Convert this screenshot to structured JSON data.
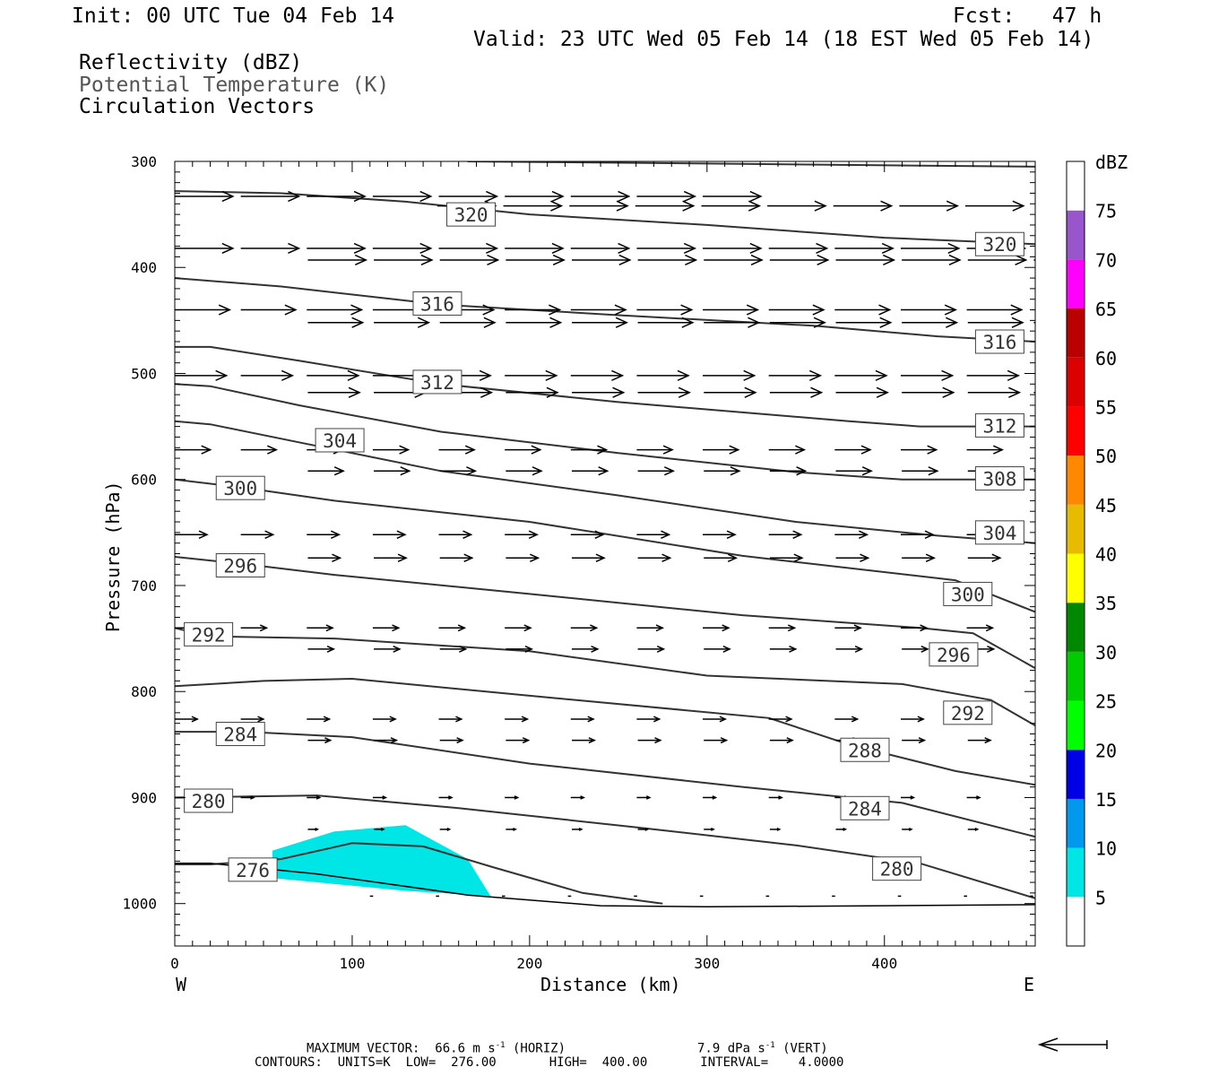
{
  "header": {
    "init": "Init: 00 UTC Tue 04 Feb 14",
    "fcst": "Fcst:   47 h",
    "valid": "Valid: 23 UTC Wed 05 Feb 14 (18 EST Wed 05 Feb 14)",
    "field1": "Reflectivity (dBZ)",
    "field2": "Potential Temperature (K)",
    "field3": "Circulation Vectors"
  },
  "chart_data": {
    "type": "cross-section",
    "xlabel": "Distance (km)",
    "ylabel": "Pressure (hPa)",
    "xlim": [
      0,
      485
    ],
    "ylim": [
      1040,
      300
    ],
    "x_ticks": [
      "0",
      "100",
      "200",
      "300",
      "400"
    ],
    "y_ticks": [
      "300",
      "400",
      "500",
      "600",
      "700",
      "800",
      "900",
      "1000"
    ],
    "x_left_label": "W",
    "x_right_label": "E",
    "reflectivity_area": {
      "color": "#00e6e6",
      "points": [
        [
          55,
          950
        ],
        [
          90,
          932
        ],
        [
          130,
          926
        ],
        [
          165,
          958
        ],
        [
          178,
          993
        ],
        [
          130,
          988
        ],
        [
          55,
          976
        ]
      ]
    },
    "contours": [
      {
        "value": 320,
        "points": [
          [
            0,
            328
          ],
          [
            60,
            330
          ],
          [
            130,
            338
          ],
          [
            200,
            350
          ],
          [
            300,
            360
          ],
          [
            400,
            372
          ],
          [
            485,
            378
          ]
        ],
        "labels": [
          {
            "text": "320",
            "x": 167,
            "y": 350
          },
          {
            "text": "320",
            "x": 465,
            "y": 378
          }
        ]
      },
      {
        "value": 316,
        "points": [
          [
            0,
            410
          ],
          [
            60,
            418
          ],
          [
            150,
            435
          ],
          [
            250,
            445
          ],
          [
            360,
            455
          ],
          [
            430,
            465
          ],
          [
            485,
            470
          ]
        ],
        "labels": [
          {
            "text": "316",
            "x": 148,
            "y": 434
          },
          {
            "text": "316",
            "x": 465,
            "y": 470
          }
        ]
      },
      {
        "value": 312,
        "points": [
          [
            0,
            475
          ],
          [
            20,
            475
          ],
          [
            70,
            488
          ],
          [
            150,
            510
          ],
          [
            250,
            527
          ],
          [
            380,
            545
          ],
          [
            420,
            550
          ],
          [
            485,
            550
          ]
        ],
        "labels": [
          {
            "text": "312",
            "x": 148,
            "y": 508
          },
          {
            "text": "312",
            "x": 465,
            "y": 549
          }
        ]
      },
      {
        "value": 308,
        "points": [
          [
            0,
            510
          ],
          [
            20,
            512
          ],
          [
            70,
            530
          ],
          [
            150,
            555
          ],
          [
            250,
            575
          ],
          [
            350,
            593
          ],
          [
            410,
            600
          ],
          [
            485,
            600
          ]
        ],
        "labels": [
          {
            "text": "308",
            "x": 465,
            "y": 599
          }
        ]
      },
      {
        "value": 304,
        "points": [
          [
            0,
            545
          ],
          [
            20,
            548
          ],
          [
            70,
            565
          ],
          [
            150,
            592
          ],
          [
            250,
            615
          ],
          [
            350,
            640
          ],
          [
            430,
            653
          ],
          [
            485,
            660
          ]
        ],
        "labels": [
          {
            "text": "304",
            "x": 93,
            "y": 563
          },
          {
            "text": "304",
            "x": 465,
            "y": 650
          }
        ]
      },
      {
        "value": 300,
        "points": [
          [
            0,
            600
          ],
          [
            40,
            608
          ],
          [
            90,
            620
          ],
          [
            200,
            640
          ],
          [
            320,
            672
          ],
          [
            440,
            695
          ],
          [
            485,
            725
          ]
        ],
        "labels": [
          {
            "text": "300",
            "x": 37,
            "y": 608
          },
          {
            "text": "300",
            "x": 447,
            "y": 708
          }
        ]
      },
      {
        "value": 296,
        "points": [
          [
            0,
            673
          ],
          [
            40,
            680
          ],
          [
            90,
            690
          ],
          [
            200,
            708
          ],
          [
            320,
            728
          ],
          [
            420,
            740
          ],
          [
            450,
            745
          ],
          [
            485,
            778
          ]
        ],
        "labels": [
          {
            "text": "296",
            "x": 37,
            "y": 681
          },
          {
            "text": "296",
            "x": 439,
            "y": 765
          }
        ]
      },
      {
        "value": 292,
        "points": [
          [
            0,
            740
          ],
          [
            20,
            748
          ],
          [
            90,
            750
          ],
          [
            200,
            762
          ],
          [
            300,
            785
          ],
          [
            410,
            793
          ],
          [
            460,
            808
          ],
          [
            485,
            832
          ]
        ],
        "labels": [
          {
            "text": "292",
            "x": 19,
            "y": 746
          },
          {
            "text": "292",
            "x": 447,
            "y": 820
          }
        ]
      },
      {
        "value": 288,
        "points": [
          [
            0,
            795
          ],
          [
            50,
            790
          ],
          [
            100,
            788
          ],
          [
            200,
            804
          ],
          [
            335,
            825
          ],
          [
            380,
            850
          ],
          [
            440,
            875
          ],
          [
            485,
            888
          ]
        ],
        "labels": [
          {
            "text": "288",
            "x": 389,
            "y": 855
          }
        ]
      },
      {
        "value": 284,
        "points": [
          [
            0,
            838
          ],
          [
            40,
            838
          ],
          [
            100,
            843
          ],
          [
            200,
            868
          ],
          [
            320,
            890
          ],
          [
            410,
            905
          ],
          [
            485,
            937
          ]
        ],
        "labels": [
          {
            "text": "284",
            "x": 37,
            "y": 840
          },
          {
            "text": "284",
            "x": 389,
            "y": 910
          }
        ]
      },
      {
        "value": 280,
        "points": [
          [
            0,
            900
          ],
          [
            80,
            898
          ],
          [
            160,
            910
          ],
          [
            260,
            928
          ],
          [
            350,
            945
          ],
          [
            420,
            962
          ],
          [
            485,
            995
          ]
        ],
        "labels": [
          {
            "text": "280",
            "x": 19,
            "y": 903
          },
          {
            "text": "280",
            "x": 407,
            "y": 967
          }
        ]
      },
      {
        "value": 276,
        "points": [
          [
            0,
            963
          ],
          [
            20,
            963
          ],
          [
            60,
            958
          ],
          [
            100,
            943
          ],
          [
            140,
            946
          ],
          [
            180,
            966
          ],
          [
            230,
            990
          ],
          [
            275,
            1000
          ]
        ],
        "labels": [
          {
            "text": "276",
            "x": 44,
            "y": 968
          }
        ]
      }
    ],
    "upper_line": {
      "points": [
        [
          165,
          300
        ],
        [
          300,
          302
        ],
        [
          485,
          305
        ]
      ]
    },
    "surface_line": {
      "points": [
        [
          0,
          962
        ],
        [
          20,
          962
        ],
        [
          80,
          972
        ],
        [
          165,
          992
        ],
        [
          240,
          1002
        ],
        [
          300,
          1003
        ],
        [
          400,
          1002
        ],
        [
          485,
          1001
        ]
      ]
    },
    "vector_rows": [
      {
        "p": 333,
        "n": 9,
        "len": 0.9,
        "x0": 0
      },
      {
        "p": 342,
        "n": 9,
        "len": 0.9,
        "x0": 148
      },
      {
        "p": 382,
        "n": 13,
        "len": 0.9,
        "x0": 0
      },
      {
        "p": 393,
        "n": 13,
        "len": 0.9,
        "x0": 75
      },
      {
        "p": 440,
        "n": 13,
        "len": 0.85,
        "x0": 0
      },
      {
        "p": 452,
        "n": 13,
        "len": 0.85,
        "x0": 75
      },
      {
        "p": 502,
        "n": 13,
        "len": 0.8,
        "x0": 0
      },
      {
        "p": 518,
        "n": 13,
        "len": 0.8,
        "x0": 75
      },
      {
        "p": 572,
        "n": 13,
        "len": 0.55,
        "x0": 0
      },
      {
        "p": 592,
        "n": 13,
        "len": 0.55,
        "x0": 75
      },
      {
        "p": 652,
        "n": 13,
        "len": 0.5,
        "x0": 0
      },
      {
        "p": 674,
        "n": 13,
        "len": 0.5,
        "x0": 75
      },
      {
        "p": 740,
        "n": 13,
        "len": 0.4,
        "x0": 0
      },
      {
        "p": 760,
        "n": 13,
        "len": 0.4,
        "x0": 75
      },
      {
        "p": 826,
        "n": 13,
        "len": 0.35,
        "x0": 0
      },
      {
        "p": 846,
        "n": 13,
        "len": 0.35,
        "x0": 75
      },
      {
        "p": 900,
        "n": 13,
        "len": 0.2,
        "x0": 0
      },
      {
        "p": 930,
        "n": 13,
        "len": 0.15,
        "x0": 75
      },
      {
        "p": 993,
        "n": 13,
        "len": 0.05,
        "x0": 110
      }
    ],
    "colorbar": {
      "title": "dBZ",
      "colors": [
        "#ffffff",
        "#00e6e6",
        "#0099ee",
        "#0000e6",
        "#00ff00",
        "#00cc00",
        "#008800",
        "#ffff00",
        "#e6bb00",
        "#ff8800",
        "#ff0000",
        "#dd0000",
        "#bb0000",
        "#ff00ff",
        "#9955cc",
        "#ffffff"
      ],
      "labels": [
        "5",
        "10",
        "15",
        "20",
        "25",
        "30",
        "35",
        "40",
        "45",
        "50",
        "55",
        "60",
        "65",
        "70",
        "75"
      ]
    }
  },
  "footer": {
    "max_vector_prefix": "MAXIMUM VECTOR:  66.6 m s",
    "max_vector_horiz": " (HORIZ)",
    "max_vector_vert_prefix": "7.9 dPa s",
    "max_vector_vert": " (VERT)",
    "exponent": "-1",
    "contours": "CONTOURS:  UNITS=K  LOW=  276.00       HIGH=  400.00       INTERVAL=    4.0000"
  }
}
